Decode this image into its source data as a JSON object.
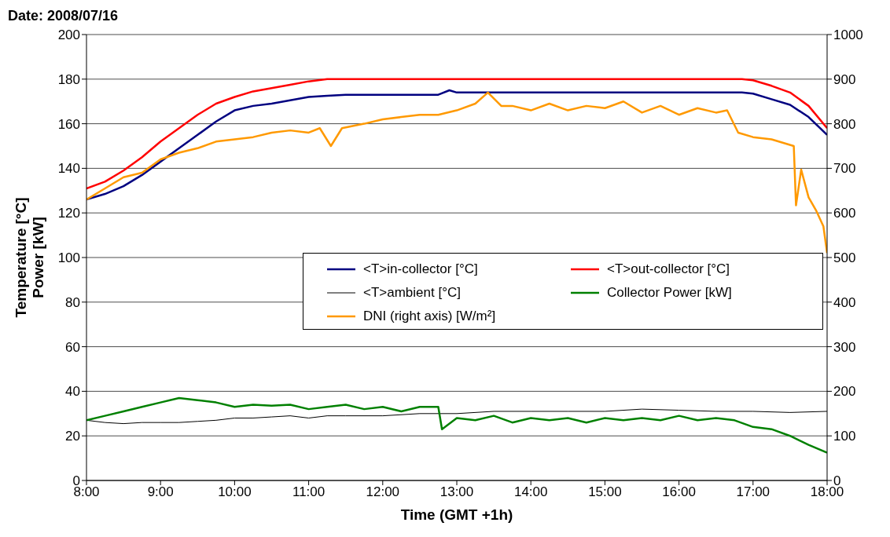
{
  "chart_data": {
    "type": "line",
    "title": "Date: 2008/07/16",
    "xlabel": "Time (GMT +1h)",
    "ylabel": "Temperature [°C]\nPower [kW]",
    "xlim": [
      8,
      18
    ],
    "xticks": [
      {
        "value": 8,
        "label": "8:00"
      },
      {
        "value": 9,
        "label": "9:00"
      },
      {
        "value": 10,
        "label": "10:00"
      },
      {
        "value": 11,
        "label": "11:00"
      },
      {
        "value": 12,
        "label": "12:00"
      },
      {
        "value": 13,
        "label": "13:00"
      },
      {
        "value": 14,
        "label": "14:00"
      },
      {
        "value": 15,
        "label": "15:00"
      },
      {
        "value": 16,
        "label": "16:00"
      },
      {
        "value": 17,
        "label": "17:00"
      },
      {
        "value": 18,
        "label": "18:00"
      }
    ],
    "ylim": [
      0,
      200
    ],
    "yticks": [
      0,
      20,
      40,
      60,
      80,
      100,
      120,
      140,
      160,
      180,
      200
    ],
    "y2lim": [
      0,
      1000
    ],
    "y2ticks": [
      0,
      100,
      200,
      300,
      400,
      500,
      600,
      700,
      800,
      900,
      1000
    ],
    "grid": "y",
    "legend": "right",
    "line_style": "solid",
    "series": [
      {
        "name": "<T>in-collector [°C]",
        "color": "#000080",
        "x": [
          8,
          8.25,
          8.5,
          8.75,
          9,
          9.25,
          9.5,
          9.75,
          10,
          10.25,
          10.5,
          10.75,
          11,
          11.25,
          11.5,
          11.75,
          12,
          12.25,
          12.5,
          12.75,
          12.9,
          13,
          13.5,
          14,
          14.5,
          15,
          15.5,
          16,
          16.5,
          16.85,
          17,
          17.25,
          17.5,
          17.75,
          18
        ],
        "values": [
          126,
          128.5,
          132,
          137,
          143,
          149,
          155,
          161,
          166,
          168,
          169,
          170.5,
          172,
          172.5,
          173,
          173,
          173,
          173,
          173,
          173,
          175,
          174,
          174,
          174,
          174,
          174,
          174,
          174,
          174,
          174,
          173.5,
          171,
          168.5,
          163,
          155
        ]
      },
      {
        "name": "<T>out-collector [°C]",
        "color": "#ff0000",
        "x": [
          8,
          8.25,
          8.5,
          8.75,
          9,
          9.25,
          9.5,
          9.75,
          10,
          10.25,
          10.5,
          10.75,
          11,
          11.25,
          11.5,
          12,
          12.5,
          13,
          13.5,
          14,
          14.5,
          15,
          15.5,
          16,
          16.5,
          16.85,
          17,
          17.25,
          17.5,
          17.75,
          18
        ],
        "values": [
          131,
          134,
          139,
          145,
          152,
          158,
          164,
          169,
          172,
          174.5,
          176,
          177.5,
          179,
          180,
          180,
          180,
          180,
          180,
          180,
          180,
          180,
          180,
          180,
          180,
          180,
          180,
          179.5,
          177,
          174,
          168,
          158
        ]
      },
      {
        "name": "<T>ambient [°C]",
        "color": "#000000",
        "x": [
          8,
          8.25,
          8.5,
          8.75,
          9,
          9.25,
          9.5,
          9.75,
          10,
          10.25,
          10.5,
          10.75,
          11,
          11.25,
          11.5,
          12,
          12.5,
          13,
          13.5,
          14,
          14.5,
          15,
          15.5,
          16,
          16.5,
          17,
          17.5,
          18
        ],
        "values": [
          27,
          26,
          25.5,
          26,
          26,
          26,
          26.5,
          27,
          28,
          28,
          28.5,
          29,
          28,
          29,
          29,
          29,
          30,
          30,
          31,
          31,
          31,
          31,
          32,
          31.5,
          31,
          31,
          30.5,
          31
        ]
      },
      {
        "name": "Collector Power [kW]",
        "color": "#008000",
        "x": [
          8,
          8.25,
          8.5,
          8.75,
          9,
          9.25,
          9.5,
          9.75,
          10,
          10.25,
          10.5,
          10.75,
          11,
          11.25,
          11.5,
          11.75,
          12,
          12.25,
          12.5,
          12.75,
          12.8,
          13,
          13.25,
          13.5,
          13.75,
          14,
          14.25,
          14.5,
          14.75,
          15,
          15.25,
          15.5,
          15.75,
          16,
          16.25,
          16.5,
          16.75,
          17,
          17.25,
          17.5,
          17.75,
          18
        ],
        "values": [
          27,
          29,
          31,
          33,
          35,
          37,
          36,
          35,
          33,
          34,
          33.5,
          34,
          32,
          33,
          34,
          32,
          33,
          31,
          33,
          33,
          23,
          28,
          27,
          29,
          26,
          28,
          27,
          28,
          26,
          28,
          27,
          28,
          27,
          29,
          27,
          28,
          27,
          24,
          23,
          20,
          16,
          12.5
        ]
      },
      {
        "name": "DNI (right axis) [W/m²]",
        "color": "#ff9900",
        "axis": "y2",
        "x": [
          8,
          8.25,
          8.5,
          8.75,
          9,
          9.25,
          9.5,
          9.75,
          10,
          10.25,
          10.5,
          10.75,
          11,
          11.15,
          11.3,
          11.45,
          11.75,
          12,
          12.25,
          12.5,
          12.75,
          13,
          13.25,
          13.42,
          13.6,
          13.75,
          14,
          14.25,
          14.5,
          14.75,
          15,
          15.25,
          15.5,
          15.75,
          16,
          16.25,
          16.5,
          16.65,
          16.8,
          17,
          17.25,
          17.55,
          17.58,
          17.65,
          17.75,
          17.85,
          17.95,
          18
        ],
        "values": [
          630,
          655,
          680,
          690,
          720,
          735,
          745,
          760,
          765,
          770,
          780,
          785,
          780,
          790,
          750,
          790,
          800,
          810,
          815,
          820,
          820,
          830,
          845,
          870,
          840,
          840,
          830,
          845,
          830,
          840,
          835,
          850,
          825,
          840,
          820,
          835,
          825,
          830,
          780,
          770,
          765,
          750,
          617,
          697,
          635,
          606,
          570,
          510
        ]
      }
    ]
  }
}
